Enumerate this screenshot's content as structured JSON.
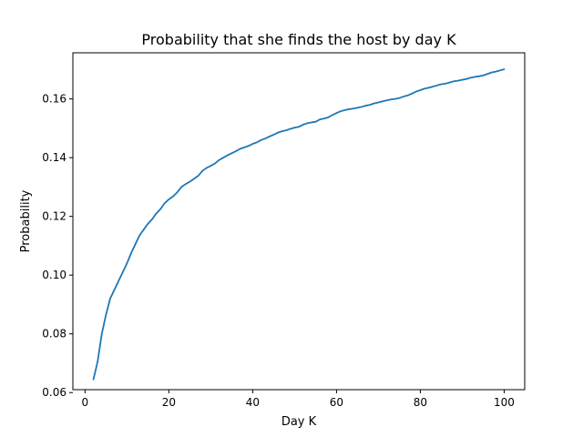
{
  "chart_data": {
    "type": "line",
    "title": "Probability that she finds the host by day K",
    "xlabel": "Day K",
    "ylabel": "Probability",
    "xlim": [
      -2.9,
      104.9
    ],
    "ylim": [
      0.061,
      0.1757
    ],
    "xticks": [
      0,
      20,
      40,
      60,
      80,
      100
    ],
    "xtick_labels": [
      "0",
      "20",
      "40",
      "60",
      "80",
      "100"
    ],
    "yticks": [
      0.06,
      0.08,
      0.1,
      0.12,
      0.14,
      0.16
    ],
    "ytick_labels": [
      "0.06",
      "0.08",
      "0.10",
      "0.12",
      "0.14",
      "0.16"
    ],
    "grid": false,
    "legend": "none",
    "series": [
      {
        "color": "#1f77b4",
        "x": [
          2,
          3,
          4,
          5,
          6,
          7,
          8,
          9,
          10,
          11,
          12,
          13,
          14,
          15,
          16,
          17,
          18,
          19,
          20,
          21,
          22,
          23,
          24,
          25,
          26,
          27,
          28,
          29,
          30,
          31,
          32,
          33,
          34,
          35,
          36,
          37,
          38,
          39,
          40,
          41,
          42,
          43,
          44,
          45,
          46,
          47,
          48,
          49,
          50,
          51,
          52,
          53,
          54,
          55,
          56,
          57,
          58,
          59,
          60,
          61,
          62,
          63,
          64,
          65,
          66,
          67,
          68,
          69,
          70,
          71,
          72,
          73,
          74,
          75,
          76,
          77,
          78,
          79,
          80,
          81,
          82,
          83,
          84,
          85,
          86,
          87,
          88,
          89,
          90,
          91,
          92,
          93,
          94,
          95,
          96,
          97,
          98,
          99,
          100
        ],
        "y": [
          0.0645,
          0.0705,
          0.08,
          0.0865,
          0.092,
          0.095,
          0.098,
          0.101,
          0.104,
          0.1075,
          0.1105,
          0.1135,
          0.1155,
          0.1175,
          0.119,
          0.121,
          0.1225,
          0.1245,
          0.1258,
          0.1268,
          0.1282,
          0.13,
          0.131,
          0.1318,
          0.1328,
          0.1338,
          0.1355,
          0.1365,
          0.1372,
          0.138,
          0.1392,
          0.14,
          0.1408,
          0.1415,
          0.1422,
          0.143,
          0.1435,
          0.144,
          0.1447,
          0.1452,
          0.146,
          0.1465,
          0.1472,
          0.1478,
          0.1485,
          0.149,
          0.1493,
          0.1498,
          0.1502,
          0.1505,
          0.1512,
          0.1517,
          0.152,
          0.1522,
          0.153,
          0.1533,
          0.1537,
          0.1545,
          0.1552,
          0.1558,
          0.1562,
          0.1565,
          0.1567,
          0.157,
          0.1573,
          0.1577,
          0.158,
          0.1585,
          0.1588,
          0.1592,
          0.1595,
          0.1598,
          0.16,
          0.1603,
          0.1608,
          0.1612,
          0.1618,
          0.1625,
          0.163,
          0.1635,
          0.1638,
          0.1642,
          0.1646,
          0.165,
          0.1652,
          0.1656,
          0.166,
          0.1662,
          0.1665,
          0.1668,
          0.1672,
          0.1675,
          0.1677,
          0.168,
          0.1685,
          0.169,
          0.1693,
          0.1697,
          0.1701
        ]
      }
    ]
  }
}
